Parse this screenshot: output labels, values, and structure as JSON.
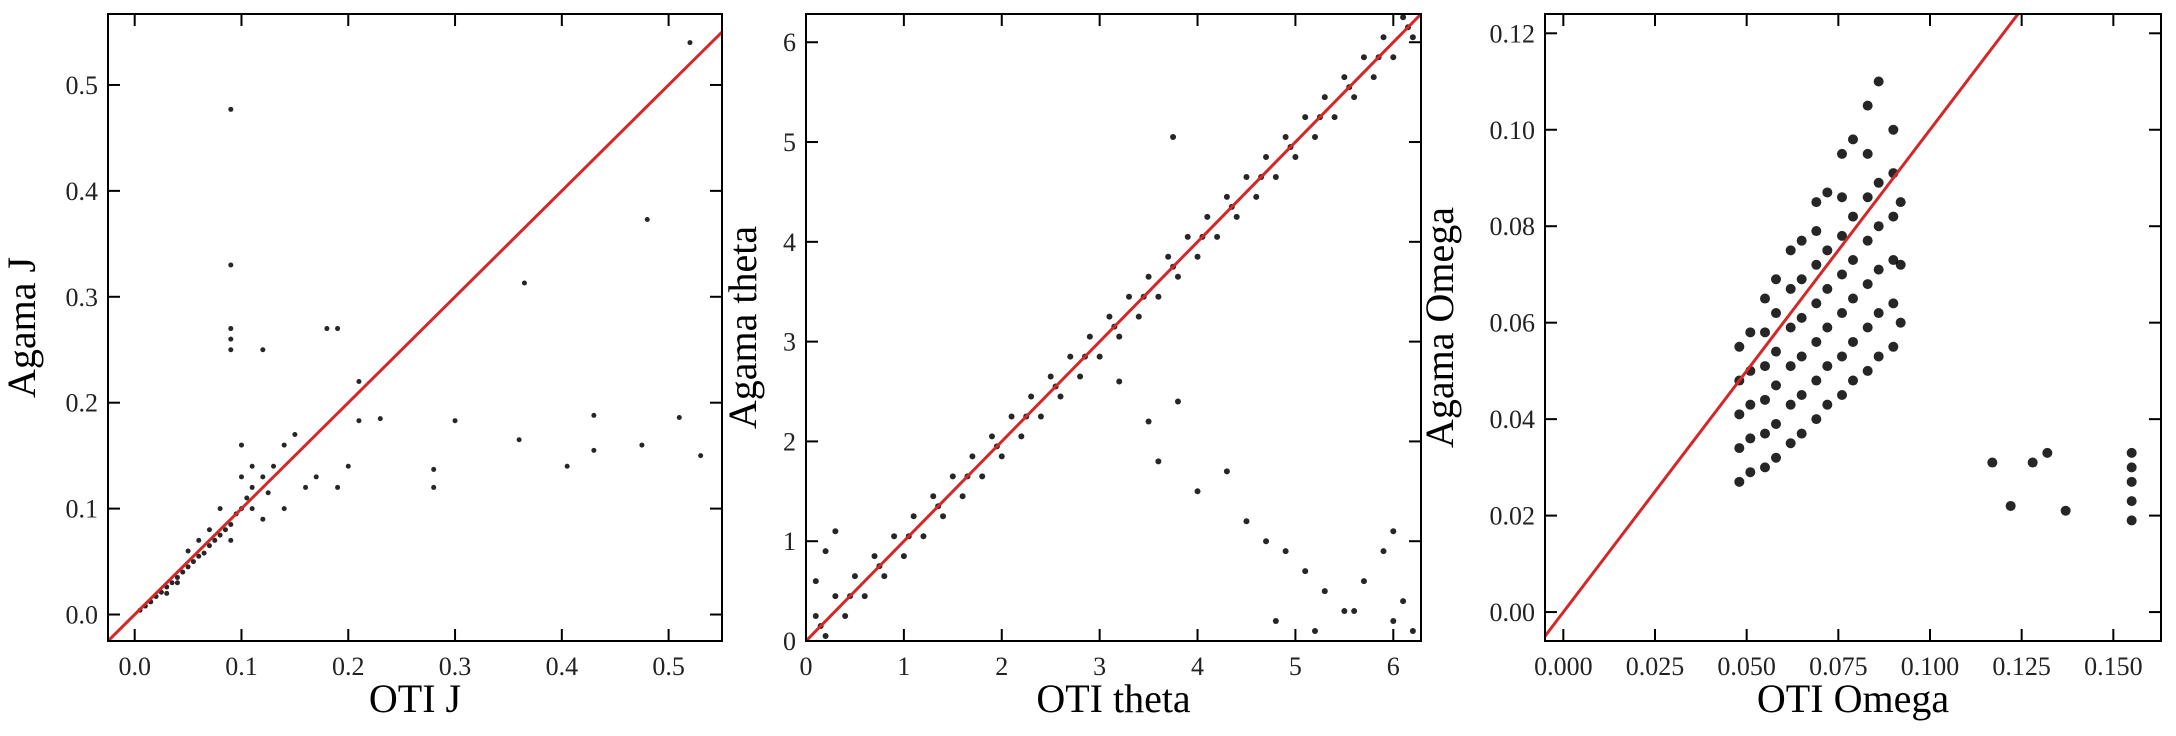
{
  "chart_data": [
    {
      "type": "scatter",
      "x_label": "OTI J",
      "y_label": "Agama J",
      "xlim": [
        -0.025,
        0.55
      ],
      "ylim": [
        -0.025,
        0.567
      ],
      "xticks": [
        {
          "value": 0,
          "label": "0.0"
        },
        0.1,
        0.2,
        0.3,
        0.4,
        0.5
      ],
      "yticks": [
        {
          "value": 0,
          "label": "0.0"
        },
        0.1,
        0.2,
        0.3,
        0.4,
        0.5
      ],
      "color": "#000000",
      "marker_size": 2.5,
      "reference_line": {
        "slope": 1,
        "intercept": 0,
        "color": "#d62728"
      },
      "x": [
        0.005,
        0.01,
        0.015,
        0.02,
        0.025,
        0.03,
        0.035,
        0.04,
        0.045,
        0.05,
        0.055,
        0.06,
        0.065,
        0.07,
        0.075,
        0.08,
        0.085,
        0.09,
        0.095,
        0.1,
        0.105,
        0.11,
        0.12,
        0.13,
        0.125,
        0.1,
        0.08,
        0.07,
        0.06,
        0.05,
        0.04,
        0.03,
        0.09,
        0.11,
        0.14,
        0.15,
        0.1,
        0.11,
        0.12,
        0.09,
        0.09,
        0.09,
        0.09,
        0.09,
        0.12,
        0.18,
        0.19,
        0.52,
        0.48,
        0.365,
        0.3,
        0.43,
        0.51,
        0.53,
        0.475,
        0.43,
        0.405,
        0.36,
        0.28,
        0.28,
        0.21,
        0.21,
        0.23,
        0.17,
        0.16,
        0.19,
        0.2,
        0.14
      ],
      "y": [
        0.004,
        0.008,
        0.012,
        0.017,
        0.021,
        0.026,
        0.03,
        0.035,
        0.04,
        0.045,
        0.05,
        0.055,
        0.058,
        0.065,
        0.07,
        0.075,
        0.08,
        0.085,
        0.095,
        0.1,
        0.11,
        0.12,
        0.13,
        0.14,
        0.115,
        0.13,
        0.1,
        0.08,
        0.07,
        0.06,
        0.03,
        0.02,
        0.07,
        0.1,
        0.16,
        0.17,
        0.16,
        0.14,
        0.09,
        0.477,
        0.33,
        0.27,
        0.26,
        0.25,
        0.25,
        0.27,
        0.27,
        0.54,
        0.373,
        0.313,
        0.183,
        0.188,
        0.186,
        0.15,
        0.16,
        0.155,
        0.14,
        0.165,
        0.137,
        0.12,
        0.183,
        0.22,
        0.185,
        0.13,
        0.12,
        0.12,
        0.14,
        0.1
      ]
    },
    {
      "type": "scatter",
      "x_label": "OTI theta",
      "y_label": "Agama theta",
      "xlim": [
        0,
        6.283
      ],
      "ylim": [
        0,
        6.283
      ],
      "xticks": [
        0,
        1,
        2,
        3,
        4,
        5,
        6
      ],
      "yticks": [
        0,
        1,
        2,
        3,
        4,
        5,
        6
      ],
      "color": "#000000",
      "marker_size": 3,
      "reference_line": {
        "slope": 1,
        "intercept": 0,
        "color": "#d62728"
      },
      "x": [
        0.1,
        0.3,
        0.5,
        0.7,
        0.9,
        1.1,
        1.3,
        1.5,
        1.7,
        1.9,
        2.1,
        2.3,
        2.5,
        2.7,
        2.9,
        3.1,
        3.3,
        3.5,
        3.7,
        3.9,
        4.1,
        4.3,
        4.5,
        4.7,
        4.9,
        5.1,
        5.3,
        5.5,
        5.7,
        5.9,
        6.1,
        0.2,
        0.4,
        0.6,
        0.8,
        1.0,
        1.2,
        1.4,
        1.6,
        1.8,
        2.0,
        2.2,
        2.4,
        2.6,
        2.8,
        3.0,
        3.2,
        3.4,
        3.6,
        3.8,
        4.0,
        4.2,
        4.4,
        4.6,
        4.8,
        5.0,
        5.2,
        5.4,
        5.6,
        5.8,
        6.0,
        6.2,
        0.15,
        0.45,
        0.75,
        1.05,
        1.35,
        1.65,
        1.95,
        2.25,
        2.55,
        2.85,
        3.15,
        3.45,
        3.75,
        4.05,
        4.35,
        4.65,
        4.95,
        5.25,
        5.55,
        5.85,
        6.15,
        3.2,
        3.5,
        3.8,
        3.6,
        4.0,
        4.3,
        4.5,
        4.7,
        4.9,
        5.1,
        5.3,
        5.5,
        5.7,
        4.8,
        5.2,
        5.6,
        6.0,
        6.1,
        6.2,
        5.9,
        6.0,
        0.1,
        0.2,
        0.3,
        3.75
      ],
      "y": [
        0.25,
        0.45,
        0.65,
        0.85,
        1.05,
        1.25,
        1.45,
        1.65,
        1.85,
        2.05,
        2.25,
        2.45,
        2.65,
        2.85,
        3.05,
        3.25,
        3.45,
        3.65,
        3.85,
        4.05,
        4.25,
        4.45,
        4.65,
        4.85,
        5.05,
        5.25,
        5.45,
        5.65,
        5.85,
        6.05,
        6.25,
        0.05,
        0.25,
        0.45,
        0.65,
        0.85,
        1.05,
        1.25,
        1.45,
        1.65,
        1.85,
        2.05,
        2.25,
        2.45,
        2.65,
        2.85,
        3.05,
        3.25,
        3.45,
        3.65,
        3.85,
        4.05,
        4.25,
        4.45,
        4.65,
        4.85,
        5.05,
        5.25,
        5.45,
        5.65,
        5.85,
        6.05,
        0.15,
        0.45,
        0.75,
        1.05,
        1.35,
        1.65,
        1.95,
        2.25,
        2.55,
        2.85,
        3.15,
        3.45,
        3.75,
        4.05,
        4.35,
        4.65,
        4.95,
        5.25,
        5.55,
        5.85,
        6.15,
        2.6,
        2.2,
        2.4,
        1.8,
        1.5,
        1.7,
        1.2,
        1.0,
        0.9,
        0.7,
        0.5,
        0.3,
        0.6,
        0.2,
        0.1,
        0.3,
        0.2,
        0.4,
        0.1,
        0.9,
        1.1,
        0.6,
        0.9,
        1.1,
        5.05
      ],
      "x_extra": null
    },
    {
      "type": "scatter",
      "x_label": "OTI Omega",
      "y_label": "Agama Omega",
      "xlim": [
        -0.005,
        0.163
      ],
      "ylim": [
        -0.006,
        0.124
      ],
      "xticks": [
        {
          "value": 0,
          "label": "0.000"
        },
        0.025,
        {
          "value": 0.05,
          "label": "0.050"
        },
        0.075,
        {
          "value": 0.1,
          "label": "0.100"
        },
        0.125,
        {
          "value": 0.15,
          "label": "0.150"
        }
      ],
      "yticks": [
        {
          "value": 0,
          "label": "0.00"
        },
        0.02,
        0.04,
        0.06,
        0.08,
        {
          "value": 0.1,
          "label": "0.10"
        },
        0.12
      ],
      "color": "#000000",
      "marker_size": 5,
      "reference_line": {
        "slope": 1,
        "intercept": 0,
        "color": "#d62728"
      },
      "x": [
        0.048,
        0.048,
        0.048,
        0.048,
        0.048,
        0.051,
        0.051,
        0.051,
        0.051,
        0.051,
        0.055,
        0.055,
        0.055,
        0.055,
        0.055,
        0.055,
        0.058,
        0.058,
        0.058,
        0.058,
        0.058,
        0.058,
        0.062,
        0.062,
        0.062,
        0.062,
        0.062,
        0.062,
        0.065,
        0.065,
        0.065,
        0.065,
        0.065,
        0.065,
        0.069,
        0.069,
        0.069,
        0.069,
        0.069,
        0.069,
        0.069,
        0.072,
        0.072,
        0.072,
        0.072,
        0.072,
        0.072,
        0.076,
        0.076,
        0.076,
        0.076,
        0.076,
        0.076,
        0.076,
        0.079,
        0.079,
        0.079,
        0.079,
        0.079,
        0.079,
        0.083,
        0.083,
        0.083,
        0.083,
        0.083,
        0.083,
        0.083,
        0.086,
        0.086,
        0.086,
        0.086,
        0.086,
        0.086,
        0.09,
        0.09,
        0.09,
        0.09,
        0.09,
        0.09,
        0.092,
        0.092,
        0.092,
        0.117,
        0.122,
        0.128,
        0.132,
        0.137,
        0.155,
        0.155,
        0.155,
        0.155,
        0.155
      ],
      "y": [
        0.027,
        0.034,
        0.041,
        0.048,
        0.055,
        0.029,
        0.036,
        0.043,
        0.05,
        0.058,
        0.03,
        0.037,
        0.044,
        0.051,
        0.058,
        0.065,
        0.032,
        0.039,
        0.047,
        0.054,
        0.062,
        0.069,
        0.035,
        0.043,
        0.051,
        0.059,
        0.067,
        0.075,
        0.037,
        0.045,
        0.053,
        0.061,
        0.069,
        0.077,
        0.04,
        0.048,
        0.056,
        0.064,
        0.072,
        0.079,
        0.085,
        0.043,
        0.051,
        0.059,
        0.067,
        0.075,
        0.087,
        0.045,
        0.053,
        0.062,
        0.07,
        0.078,
        0.086,
        0.095,
        0.048,
        0.056,
        0.065,
        0.073,
        0.082,
        0.098,
        0.05,
        0.059,
        0.068,
        0.077,
        0.086,
        0.095,
        0.105,
        0.053,
        0.062,
        0.071,
        0.08,
        0.089,
        0.11,
        0.055,
        0.064,
        0.073,
        0.082,
        0.091,
        0.1,
        0.06,
        0.072,
        0.085,
        0.031,
        0.022,
        0.031,
        0.033,
        0.021,
        0.019,
        0.023,
        0.027,
        0.03,
        0.033
      ]
    }
  ]
}
